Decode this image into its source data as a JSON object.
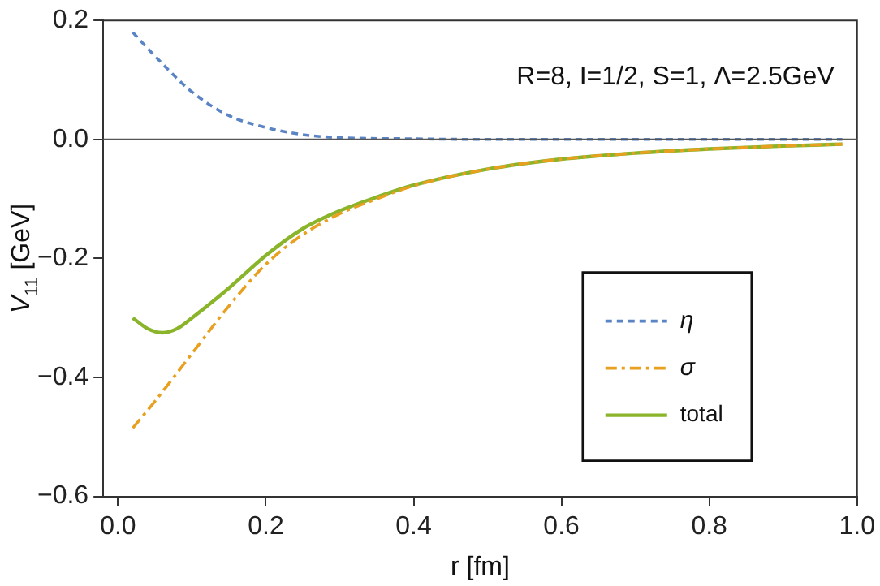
{
  "chart_data": {
    "type": "line",
    "xlabel": "r [fm]",
    "ylabel": "V$_{11}$ [GeV]",
    "annotations": [
      "R=8, I=1/2, S=1, Λ=2.5GeV"
    ],
    "xlim": [
      -0.02,
      1.0
    ],
    "xticks": [
      {
        "value": 0,
        "label": "0.0"
      },
      0.2,
      0.4,
      0.6,
      0.8,
      {
        "value": 1,
        "label": "1.0"
      }
    ],
    "ylim": [
      -0.6,
      0.2
    ],
    "yticks": [
      {
        "value": -0.6,
        "label": "−0.6"
      },
      {
        "value": -0.4,
        "label": "−0.4"
      },
      {
        "value": -0.2,
        "label": "−0.2"
      },
      {
        "value": 0,
        "label": "0.0"
      },
      0.2
    ],
    "ref_lines": [
      {
        "axis": "y",
        "value": 0,
        "color": "#555555"
      }
    ],
    "grid": false,
    "legend": "bottom right",
    "marker": "none",
    "series": [
      {
        "name": "η",
        "color": "#5a84c4",
        "line_style": "dashed",
        "x": [
          0.02,
          0.05,
          0.1,
          0.15,
          0.2,
          0.25,
          0.3,
          0.4,
          0.5,
          0.7,
          0.98
        ],
        "values": [
          0.18,
          0.14,
          0.08,
          0.04,
          0.02,
          0.008,
          0.003,
          0.001,
          0,
          0,
          0
        ]
      },
      {
        "name": "σ",
        "color": "#e8a020",
        "line_style": "dashdot",
        "x": [
          0.02,
          0.05,
          0.1,
          0.15,
          0.2,
          0.25,
          0.3,
          0.35,
          0.4,
          0.5,
          0.6,
          0.7,
          0.8,
          0.9,
          0.98
        ],
        "values": [
          -0.485,
          -0.44,
          -0.36,
          -0.28,
          -0.21,
          -0.16,
          -0.125,
          -0.1,
          -0.078,
          -0.05,
          -0.033,
          -0.023,
          -0.016,
          -0.011,
          -0.008
        ]
      },
      {
        "name": "total",
        "color": "#8ab42a",
        "line_style": "solid",
        "x": [
          0.02,
          0.04,
          0.06,
          0.08,
          0.1,
          0.15,
          0.2,
          0.25,
          0.3,
          0.35,
          0.4,
          0.5,
          0.6,
          0.7,
          0.8,
          0.9,
          0.98
        ],
        "values": [
          -0.3,
          -0.318,
          -0.325,
          -0.318,
          -0.3,
          -0.25,
          -0.195,
          -0.15,
          -0.12,
          -0.097,
          -0.077,
          -0.05,
          -0.033,
          -0.023,
          -0.016,
          -0.011,
          -0.008
        ]
      }
    ]
  }
}
